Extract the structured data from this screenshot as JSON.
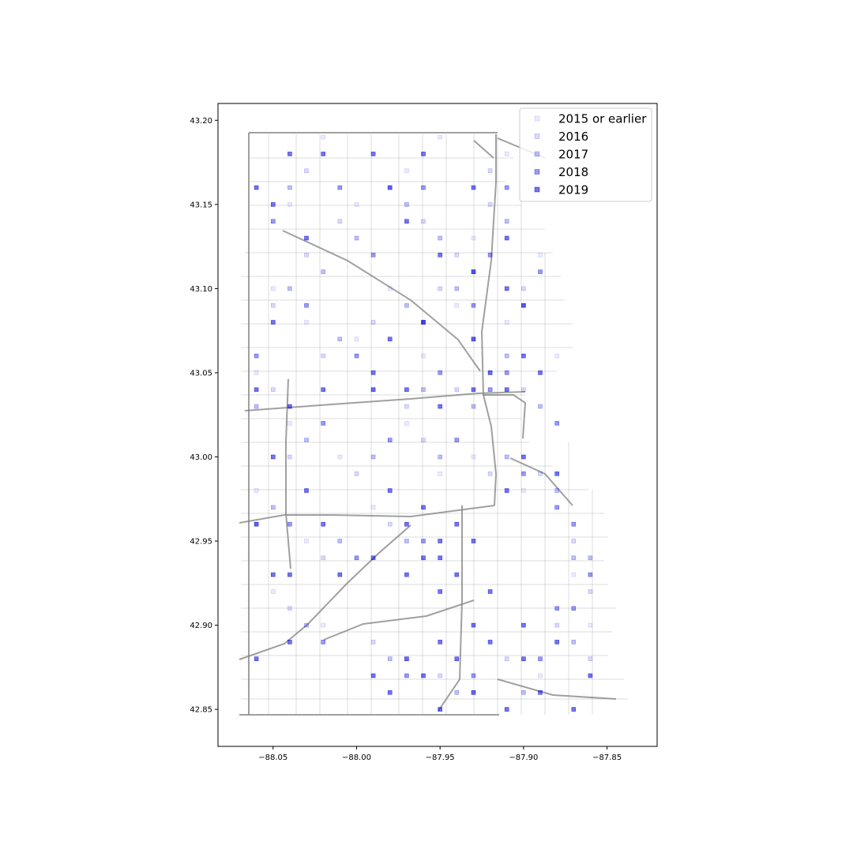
{
  "chart_data": {
    "type": "scatter",
    "title": "",
    "xlabel": "",
    "ylabel": "",
    "xlim": [
      -88.083,
      -87.82
    ],
    "ylim": [
      42.828,
      43.21
    ],
    "xticks": [
      -88.05,
      -88.0,
      -87.95,
      -87.9,
      -87.85
    ],
    "xtick_labels": [
      "−88.05",
      "−88.00",
      "−87.95",
      "−87.90",
      "−87.85"
    ],
    "yticks": [
      42.85,
      42.9,
      42.95,
      43.0,
      43.05,
      43.1,
      43.15,
      43.2
    ],
    "ytick_labels": [
      "42.85",
      "42.90",
      "42.95",
      "43.00",
      "43.05",
      "43.10",
      "43.15",
      "43.20"
    ],
    "legend_position": "top-right",
    "grid": false,
    "marker_color": "#0000dd",
    "road_color": "#808080",
    "series": [
      {
        "name": "2015 or earlier",
        "alpha": 0.08,
        "points": [
          [
            -88.05,
            43.1
          ],
          [
            -88.03,
            43.08
          ],
          [
            -88.0,
            43.07
          ],
          [
            -87.98,
            43.1
          ],
          [
            -87.96,
            43.06
          ],
          [
            -87.94,
            43.09
          ],
          [
            -87.92,
            43.05
          ],
          [
            -88.04,
            43.02
          ],
          [
            -88.01,
            43.0
          ],
          [
            -87.97,
            43.02
          ],
          [
            -87.93,
            43.0
          ],
          [
            -87.91,
            43.08
          ],
          [
            -88.06,
            42.98
          ],
          [
            -88.03,
            42.95
          ],
          [
            -87.99,
            42.97
          ],
          [
            -87.95,
            42.99
          ],
          [
            -87.9,
            42.98
          ],
          [
            -87.88,
            43.06
          ],
          [
            -87.87,
            42.93
          ],
          [
            -87.86,
            42.9
          ],
          [
            -88.05,
            42.92
          ],
          [
            -88.02,
            42.9
          ],
          [
            -87.97,
            42.88
          ],
          [
            -87.93,
            42.86
          ],
          [
            -87.89,
            42.87
          ],
          [
            -88.0,
            43.15
          ],
          [
            -87.97,
            43.17
          ],
          [
            -87.93,
            43.13
          ],
          [
            -88.04,
            43.15
          ],
          [
            -88.02,
            43.19
          ],
          [
            -87.95,
            43.19
          ],
          [
            -87.91,
            43.18
          ],
          [
            -87.89,
            43.12
          ],
          [
            -88.06,
            43.05
          ],
          [
            -87.99,
            43.04
          ]
        ]
      },
      {
        "name": "2016",
        "alpha": 0.15,
        "points": [
          [
            -88.05,
            43.09
          ],
          [
            -88.02,
            43.06
          ],
          [
            -87.99,
            43.08
          ],
          [
            -87.95,
            43.1
          ],
          [
            -87.93,
            43.07
          ],
          [
            -87.9,
            43.04
          ],
          [
            -88.04,
            43.0
          ],
          [
            -88.0,
            42.99
          ],
          [
            -87.96,
            43.01
          ],
          [
            -87.92,
            42.99
          ],
          [
            -87.89,
            42.99
          ],
          [
            -88.06,
            42.96
          ],
          [
            -88.02,
            42.94
          ],
          [
            -87.98,
            42.96
          ],
          [
            -87.87,
            42.95
          ],
          [
            -87.86,
            42.92
          ],
          [
            -87.88,
            42.9
          ],
          [
            -88.04,
            42.91
          ],
          [
            -87.99,
            42.89
          ],
          [
            -87.95,
            42.87
          ],
          [
            -87.91,
            42.88
          ],
          [
            -88.01,
            43.14
          ],
          [
            -87.98,
            43.16
          ],
          [
            -87.94,
            43.12
          ],
          [
            -88.03,
            43.17
          ],
          [
            -87.92,
            43.15
          ],
          [
            -87.9,
            43.1
          ],
          [
            -88.05,
            43.04
          ],
          [
            -87.97,
            43.03
          ],
          [
            -87.94,
            43.04
          ],
          [
            -87.86,
            42.88
          ],
          [
            -88.03,
            43.12
          ],
          [
            -87.96,
            43.14
          ],
          [
            -87.92,
            43.17
          ]
        ]
      },
      {
        "name": "2017",
        "alpha": 0.25,
        "points": [
          [
            -88.04,
            43.1
          ],
          [
            -88.01,
            43.07
          ],
          [
            -87.97,
            43.09
          ],
          [
            -87.94,
            43.1
          ],
          [
            -87.91,
            43.06
          ],
          [
            -87.89,
            43.03
          ],
          [
            -88.03,
            43.01
          ],
          [
            -87.99,
            43.0
          ],
          [
            -87.95,
            43.0
          ],
          [
            -87.91,
            43.0
          ],
          [
            -87.88,
            42.98
          ],
          [
            -88.05,
            42.97
          ],
          [
            -88.01,
            42.95
          ],
          [
            -87.97,
            42.95
          ],
          [
            -87.87,
            42.94
          ],
          [
            -87.86,
            42.94
          ],
          [
            -87.87,
            42.89
          ],
          [
            -88.03,
            42.9
          ],
          [
            -87.98,
            42.88
          ],
          [
            -87.94,
            42.86
          ],
          [
            -87.9,
            42.86
          ],
          [
            -88.0,
            43.13
          ],
          [
            -87.97,
            43.15
          ],
          [
            -87.93,
            43.11
          ],
          [
            -88.04,
            43.16
          ],
          [
            -87.91,
            43.14
          ],
          [
            -87.9,
            43.09
          ],
          [
            -88.06,
            43.03
          ],
          [
            -87.96,
            43.04
          ],
          [
            -87.93,
            43.03
          ],
          [
            -88.02,
            43.11
          ],
          [
            -87.95,
            43.13
          ]
        ]
      },
      {
        "name": "2018",
        "alpha": 0.4,
        "points": [
          [
            -88.03,
            43.09
          ],
          [
            -88.0,
            43.06
          ],
          [
            -87.96,
            43.08
          ],
          [
            -87.93,
            43.09
          ],
          [
            -87.91,
            43.05
          ],
          [
            -87.88,
            43.02
          ],
          [
            -88.02,
            43.02
          ],
          [
            -87.98,
            43.01
          ],
          [
            -87.94,
            43.01
          ],
          [
            -87.9,
            42.99
          ],
          [
            -87.88,
            42.97
          ],
          [
            -88.04,
            42.96
          ],
          [
            -88.0,
            42.94
          ],
          [
            -87.96,
            42.95
          ],
          [
            -87.87,
            42.96
          ],
          [
            -87.86,
            42.93
          ],
          [
            -87.88,
            42.91
          ],
          [
            -88.02,
            42.89
          ],
          [
            -87.97,
            42.87
          ],
          [
            -87.93,
            42.87
          ],
          [
            -87.89,
            42.88
          ],
          [
            -87.99,
            43.12
          ],
          [
            -87.96,
            43.16
          ],
          [
            -87.92,
            43.12
          ],
          [
            -88.05,
            43.14
          ],
          [
            -87.91,
            43.16
          ],
          [
            -87.89,
            43.11
          ],
          [
            -88.06,
            43.06
          ],
          [
            -87.95,
            43.05
          ],
          [
            -87.92,
            43.04
          ],
          [
            -87.87,
            42.91
          ],
          [
            -88.01,
            43.16
          ]
        ]
      },
      {
        "name": "2019",
        "alpha": 0.55,
        "points": [
          [
            -87.95,
            42.95
          ],
          [
            -87.94,
            42.96
          ],
          [
            -87.95,
            42.94
          ],
          [
            -87.94,
            42.93
          ],
          [
            -87.96,
            42.94
          ],
          [
            -87.93,
            42.95
          ],
          [
            -87.97,
            42.93
          ],
          [
            -87.92,
            42.92
          ],
          [
            -87.95,
            42.92
          ],
          [
            -87.96,
            42.97
          ],
          [
            -87.98,
            42.98
          ],
          [
            -87.97,
            42.96
          ],
          [
            -87.99,
            42.94
          ],
          [
            -88.01,
            42.93
          ],
          [
            -88.02,
            42.96
          ],
          [
            -88.04,
            42.93
          ],
          [
            -87.93,
            42.9
          ],
          [
            -87.95,
            42.89
          ],
          [
            -87.96,
            42.87
          ],
          [
            -87.97,
            42.88
          ],
          [
            -87.94,
            42.88
          ],
          [
            -87.92,
            42.89
          ],
          [
            -87.9,
            42.88
          ],
          [
            -87.9,
            42.9
          ],
          [
            -87.89,
            42.86
          ],
          [
            -87.91,
            42.85
          ],
          [
            -87.86,
            42.87
          ],
          [
            -87.88,
            42.89
          ],
          [
            -87.87,
            42.85
          ],
          [
            -87.93,
            42.86
          ],
          [
            -87.98,
            42.86
          ],
          [
            -87.99,
            42.87
          ],
          [
            -87.95,
            42.85
          ],
          [
            -88.06,
            42.88
          ],
          [
            -88.04,
            42.89
          ],
          [
            -88.03,
            42.98
          ],
          [
            -88.04,
            43.03
          ],
          [
            -88.02,
            43.04
          ],
          [
            -87.99,
            43.04
          ],
          [
            -87.97,
            43.04
          ],
          [
            -87.95,
            43.03
          ],
          [
            -87.93,
            43.04
          ],
          [
            -87.91,
            43.04
          ],
          [
            -87.96,
            43.08
          ],
          [
            -87.98,
            43.07
          ],
          [
            -87.99,
            43.05
          ],
          [
            -87.93,
            43.07
          ],
          [
            -87.92,
            43.05
          ],
          [
            -87.9,
            43.06
          ],
          [
            -87.89,
            43.05
          ],
          [
            -87.9,
            43.09
          ],
          [
            -87.91,
            43.1
          ],
          [
            -87.93,
            43.11
          ],
          [
            -87.95,
            43.12
          ],
          [
            -87.97,
            43.14
          ],
          [
            -87.98,
            43.16
          ],
          [
            -87.93,
            43.16
          ],
          [
            -87.91,
            43.13
          ],
          [
            -87.9,
            43.0
          ],
          [
            -87.88,
            42.99
          ],
          [
            -87.91,
            42.98
          ],
          [
            -88.06,
            43.16
          ],
          [
            -88.05,
            43.15
          ],
          [
            -88.03,
            43.13
          ],
          [
            -88.04,
            43.18
          ],
          [
            -88.02,
            43.18
          ],
          [
            -87.99,
            43.18
          ],
          [
            -87.96,
            43.18
          ],
          [
            -88.05,
            43.08
          ],
          [
            -88.06,
            43.04
          ],
          [
            -88.05,
            43.0
          ],
          [
            -88.06,
            42.96
          ],
          [
            -88.05,
            42.93
          ]
        ]
      }
    ]
  }
}
